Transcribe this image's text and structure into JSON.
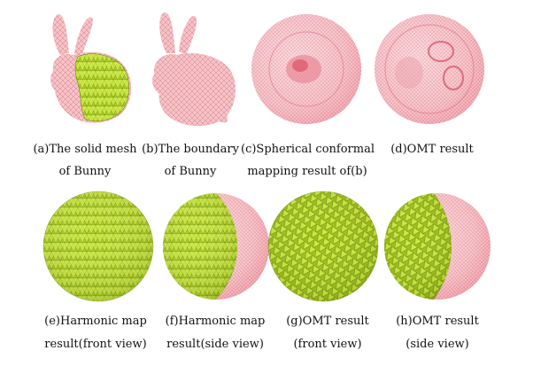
{
  "figure": {
    "top_row": [
      {
        "caption_line1": "(a)The solid mesh",
        "caption_line2": "of Bunny"
      },
      {
        "caption_line1": "(b)The boundary",
        "caption_line2": "of Bunny"
      },
      {
        "caption_line1": "(c)Spherical conformal",
        "caption_line2": "mapping result of(b)"
      },
      {
        "caption_line1": "(d)OMT result",
        "caption_line2": ""
      }
    ],
    "bottom_row": [
      {
        "caption_line1": "(e)Harmonic map",
        "caption_line2": "result(front view)"
      },
      {
        "caption_line1": "(f)Harmonic map",
        "caption_line2": "result(side view)"
      },
      {
        "caption_line1": "(g)OMT result",
        "caption_line2": "(front view)"
      },
      {
        "caption_line1": "(h)OMT result",
        "caption_line2": "(side view)"
      }
    ]
  },
  "colors": {
    "mesh_pink": "#f0b7bd",
    "mesh_red_edge": "#e4475a",
    "solid_yellow_green": "#c7e83a",
    "solid_dark": "#5f7d0e"
  }
}
